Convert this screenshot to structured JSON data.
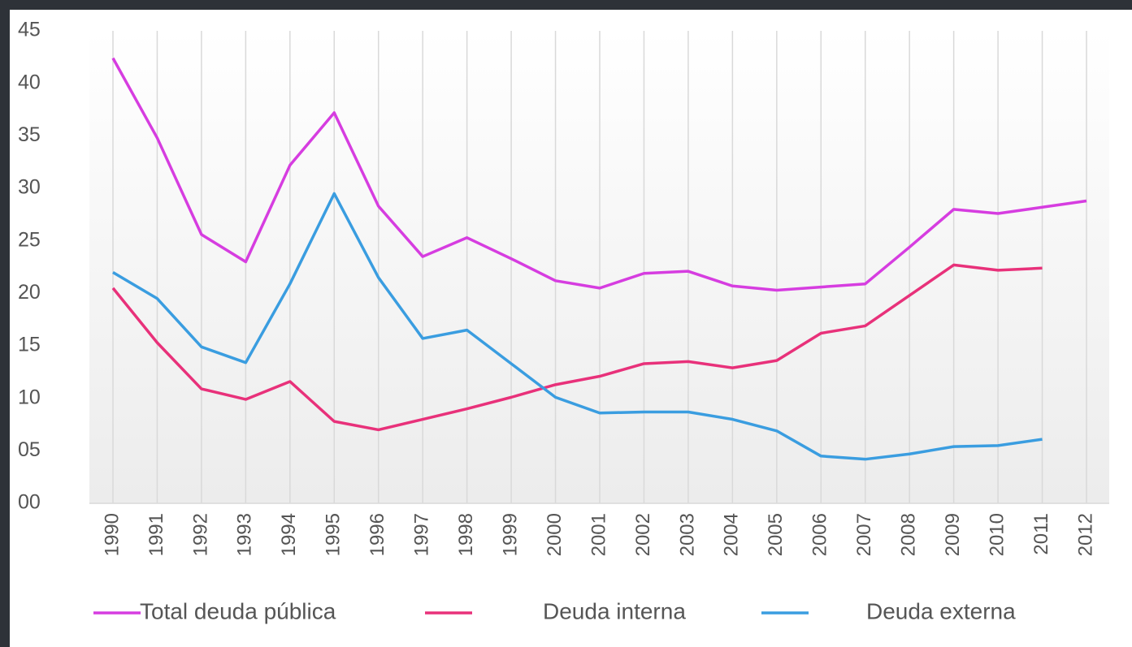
{
  "chart_data": {
    "type": "line",
    "categories": [
      "1990",
      "1991",
      "1992",
      "1993",
      "1994",
      "1995",
      "1996",
      "1997",
      "1998",
      "1999",
      "2000",
      "2001",
      "2002",
      "2003",
      "2004",
      "2005",
      "2006",
      "2007",
      "2008",
      "2009",
      "2010",
      "2011",
      "2012"
    ],
    "series": [
      {
        "name": "Total deuda pública",
        "color": "#d63de0",
        "values": [
          42.4,
          34.8,
          25.6,
          23.0,
          32.2,
          37.2,
          28.3,
          23.5,
          25.3,
          23.3,
          21.2,
          20.5,
          21.9,
          22.1,
          20.7,
          20.3,
          20.6,
          20.9,
          24.4,
          28.0,
          27.6,
          28.2,
          28.8
        ]
      },
      {
        "name": "Deuda interna",
        "color": "#e8317a",
        "values": [
          20.5,
          15.3,
          10.9,
          9.9,
          11.6,
          7.8,
          7.0,
          8.0,
          9.0,
          10.1,
          11.3,
          12.1,
          13.3,
          13.5,
          12.9,
          13.6,
          16.2,
          16.9,
          19.8,
          22.7,
          22.2,
          22.4,
          null
        ]
      },
      {
        "name": "Deuda externa",
        "color": "#3a9de0",
        "values": [
          22.0,
          19.5,
          14.9,
          13.4,
          20.9,
          29.5,
          21.5,
          15.7,
          16.5,
          13.3,
          10.1,
          8.6,
          8.7,
          8.7,
          8.0,
          6.9,
          4.5,
          4.2,
          4.7,
          5.4,
          5.5,
          6.1,
          null
        ]
      }
    ],
    "ylim": [
      0,
      45
    ],
    "yticks": [
      {
        "value": 0,
        "label": "00"
      },
      {
        "value": 5,
        "label": "05"
      },
      10,
      15,
      20,
      25,
      30,
      35,
      40,
      45
    ],
    "grid": true,
    "legend": "bottom"
  }
}
